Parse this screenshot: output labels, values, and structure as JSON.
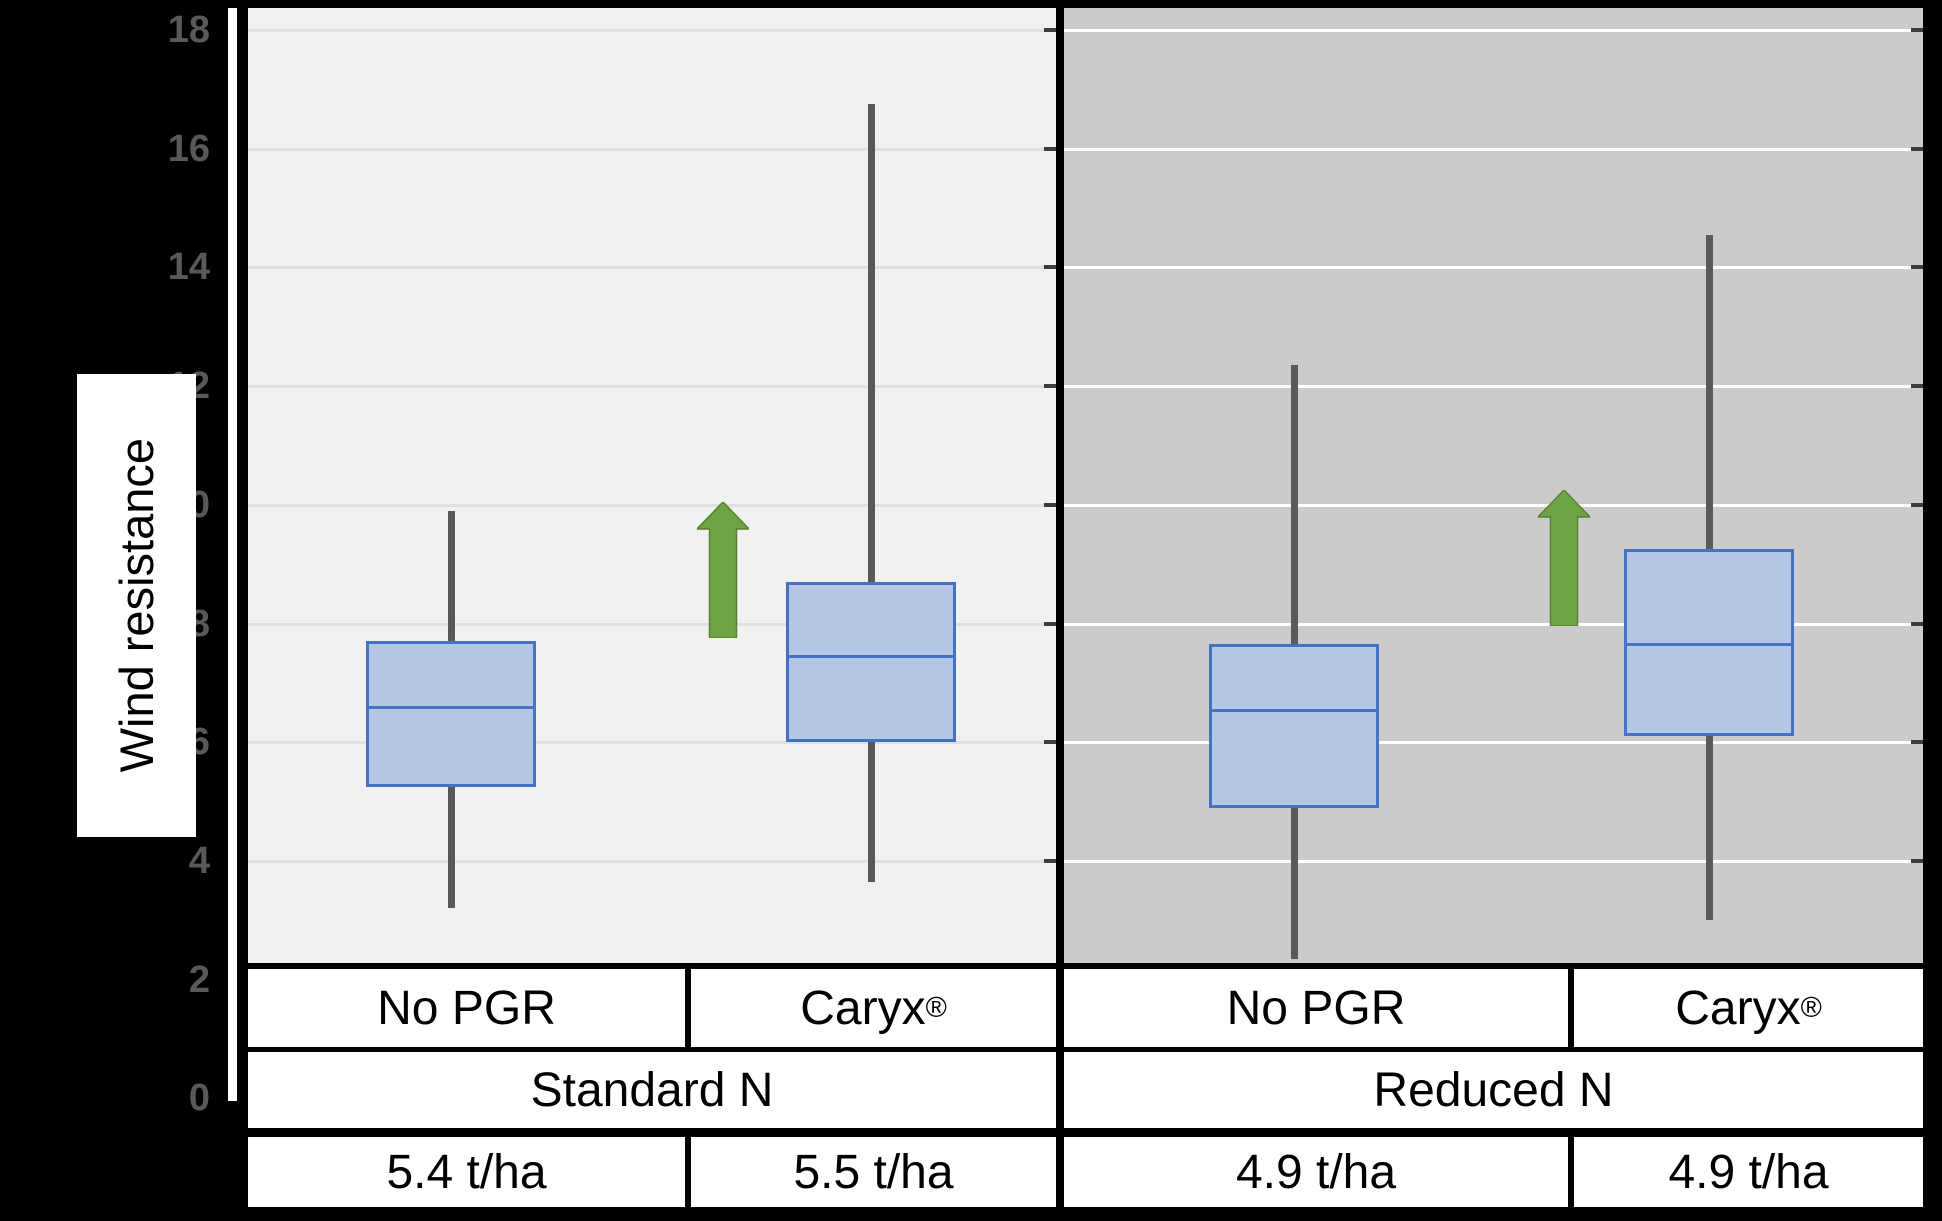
{
  "colors": {
    "page_bg": "#000000",
    "panel_standard_bg": "#F1F1F1",
    "panel_reduced_bg": "#CBCBCB",
    "gridline_light_panel": "#E0E0E0",
    "gridline_dark_panel": "#FFFFFF",
    "box_fill": "#B4C7E7",
    "box_border": "#4472C4",
    "whisker": "#595959",
    "arrow_green": "#6EA544",
    "axis_line": "#FFFFFF",
    "tick_label": "#595959",
    "table_text": "#000000"
  },
  "y_axis": {
    "title": "Wind resistance",
    "ticks": [
      18,
      16,
      14,
      12,
      10,
      8,
      6,
      4,
      2,
      0
    ]
  },
  "chart_data": {
    "type": "boxplot",
    "title": "",
    "ylabel": "Wind resistance",
    "ylim": [
      0,
      18
    ],
    "grid": true,
    "panels": [
      {
        "name": "Standard N",
        "bg": "#F1F1F1"
      },
      {
        "name": "Reduced N",
        "bg": "#CBCBCB"
      }
    ],
    "groups": [
      {
        "treatment": "No PGR",
        "nitrogen": "Standard N",
        "yield": "5.4 t/ha",
        "min": 3.2,
        "q1": 5.25,
        "median": 6.6,
        "q3": 7.7,
        "max": 9.9,
        "arrow": false
      },
      {
        "treatment": "Caryx®",
        "nitrogen": "Standard N",
        "yield": "5.5 t/ha",
        "min": 3.65,
        "q1": 6.0,
        "median": 7.45,
        "q3": 8.7,
        "max": 16.75,
        "arrow": true
      },
      {
        "treatment": "No PGR",
        "nitrogen": "Reduced N",
        "yield": "4.9 t/ha",
        "min": 2.35,
        "q1": 4.9,
        "median": 6.55,
        "q3": 7.65,
        "max": 12.35,
        "arrow": false
      },
      {
        "treatment": "Caryx®",
        "nitrogen": "Reduced N",
        "yield": "4.9 t/ha",
        "min": 3.0,
        "q1": 6.1,
        "median": 7.65,
        "q3": 9.25,
        "max": 14.55,
        "arrow": true
      }
    ]
  },
  "table": {
    "treatments": [
      {
        "label": "No PGR",
        "reg": ""
      },
      {
        "label": "Caryx",
        "reg": "®"
      },
      {
        "label": "No PGR",
        "reg": ""
      },
      {
        "label": "Caryx",
        "reg": "®"
      }
    ],
    "nitrogen": [
      {
        "label": "Standard N"
      },
      {
        "label": "Reduced N"
      }
    ],
    "yields": [
      {
        "label": "5.4 t/ha"
      },
      {
        "label": "5.5 t/ha"
      },
      {
        "label": "4.9 t/ha"
      },
      {
        "label": "4.9 t/ha"
      }
    ]
  }
}
